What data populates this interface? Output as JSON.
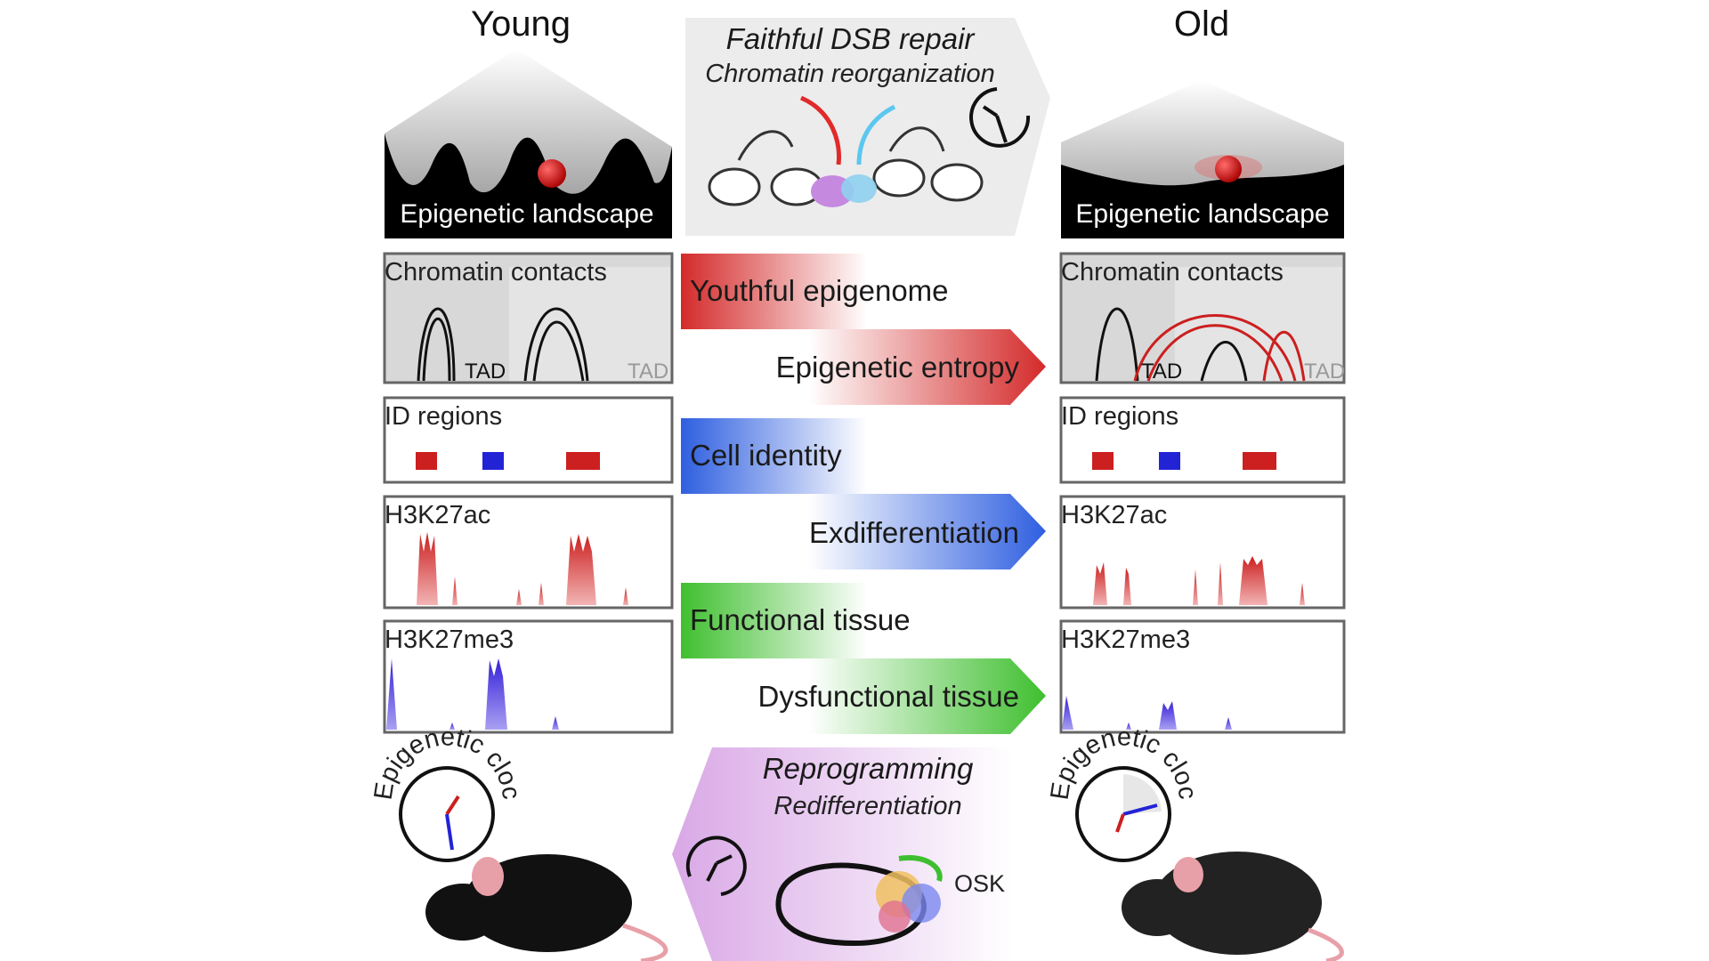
{
  "titles": {
    "young": "Young",
    "old": "Old"
  },
  "top_banner": {
    "line1": "Faithful DSB repair",
    "line2": "Chromatin reorganization"
  },
  "landscape": {
    "young_label": "Epigenetic landscape",
    "old_label": "Epigenetic landscape"
  },
  "panels": {
    "contacts": "Chromatin contacts",
    "tad": "TAD",
    "id_regions": "ID regions",
    "h3k27ac": "H3K27ac",
    "h3k27me3": "H3K27me3"
  },
  "arrows": [
    {
      "left": "Youthful epigenome",
      "right": "Epigenetic entropy",
      "color": "#d42a2a"
    },
    {
      "left": "Cell identity",
      "right": "Exdifferentiation",
      "color": "#2f5fe0"
    },
    {
      "left": "Functional tissue",
      "right": "Dysfunctional tissue",
      "color": "#3fbf2f"
    }
  ],
  "bottom_banner": {
    "line1": "Reprogramming",
    "line2": "Redifferentiation",
    "factor": "OSK",
    "color": "#d9a8e6"
  },
  "clock": {
    "label": "Epigenetic clock"
  },
  "colors": {
    "red": "#cc1f1f",
    "blue": "#2323d6",
    "purple": "#5a2be0"
  }
}
